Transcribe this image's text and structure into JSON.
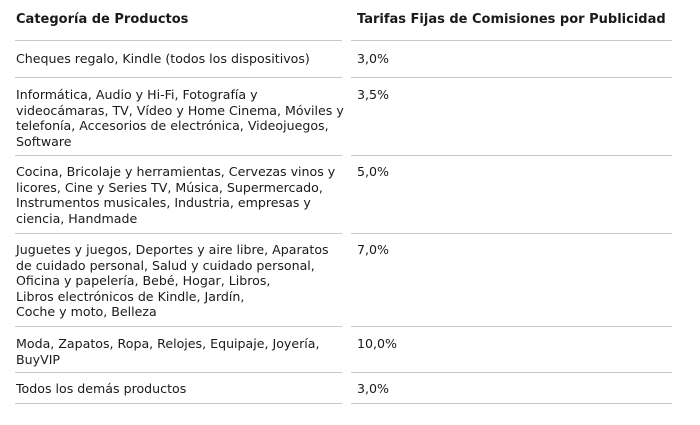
{
  "table": {
    "headers": {
      "category": "Categoría de Productos",
      "fee": "Tarifas Fijas de Comisiones por Publicidad"
    },
    "rows": [
      {
        "category": "Cheques regalo, Kindle (todos los dispositivos)",
        "fee": "3,0%"
      },
      {
        "category": "Informática, Audio y Hi-Fi, Fotografía y\nvideocámaras, TV, Vídeo y Home Cinema, Móviles y\ntelefonía, Accesorios de electrónica, Videojuegos,\nSoftware",
        "fee": "3,5%"
      },
      {
        "category": "Cocina, Bricolaje y herramientas, Cervezas vinos y\nlicores, Cine y Series TV, Música, Supermercado,\nInstrumentos musicales, Industria, empresas y\nciencia, Handmade",
        "fee": "5,0%"
      },
      {
        "category": "Juguetes y juegos, Deportes y aire libre, Aparatos\nde cuidado personal, Salud y cuidado personal,\nOficina y papelería, Bebé, Hogar, Libros,\nLibros electrónicos de Kindle, Jardín,\nCoche y moto, Belleza",
        "fee": "7,0%"
      },
      {
        "category": "Moda, Zapatos, Ropa, Relojes, Equipaje, Joyería,\nBuyVIP",
        "fee": "10,0%"
      },
      {
        "category": "Todos los demás productos",
        "fee": "3,0%"
      }
    ]
  }
}
